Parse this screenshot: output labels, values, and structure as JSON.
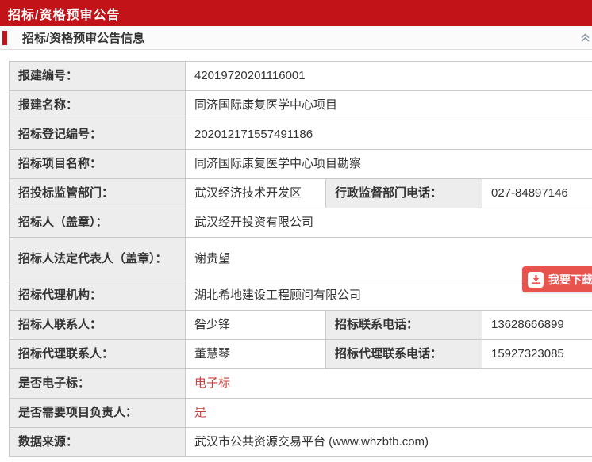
{
  "banner": {
    "title": "招标/资格预审公告"
  },
  "section": {
    "title": "招标/资格预审公告信息",
    "collapse_icon": "double-chevron-up-icon"
  },
  "download": {
    "label": "我要下载",
    "icon": "download-icon"
  },
  "colors": {
    "banner_red": "#c11318",
    "accent_red": "#c11318",
    "download_button_red": "#e9534e",
    "highlight_value_red": "#c5413e",
    "label_cell_bg": "#ededed",
    "table_border": "#c9c9c9",
    "chevron_gray_blue": "#8b98a8"
  },
  "table": {
    "rows": [
      {
        "label": "报建编号：",
        "value": "42019720201116001"
      },
      {
        "label": "报建名称：",
        "value": "同济国际康复医学中心项目"
      },
      {
        "label": "招标登记编号：",
        "value": "202012171557491186"
      },
      {
        "label": "招标项目名称：",
        "value": "同济国际康复医学中心项目勘察"
      },
      {
        "label": "招投标监管部门：",
        "value": "武汉经济技术开发区",
        "label2": "行政监督部门电话：",
        "value2": "027-84897146"
      },
      {
        "label": "招标人（盖章）：",
        "value": "武汉经开投资有限公司"
      },
      {
        "label": "招标人法定代表人（盖章）：",
        "value": "谢贵望",
        "tall": true
      },
      {
        "label": "招标代理机构：",
        "value": "湖北希地建设工程顾问有限公司"
      },
      {
        "label": "招标人联系人：",
        "value": "昝少锋",
        "label2": "招标联系电话：",
        "value2": "13628666899"
      },
      {
        "label": "招标代理联系人：",
        "value": "董慧琴",
        "label2": "招标代理联系电话：",
        "value2": "15927323085"
      },
      {
        "label": "是否电子标：",
        "value": "电子标",
        "red": true
      },
      {
        "label": "是否需要项目负责人：",
        "value": "是",
        "red": true
      },
      {
        "label": "数据来源：",
        "value": "武汉市公共资源交易平台 (www.whzbtb.com)"
      }
    ]
  }
}
